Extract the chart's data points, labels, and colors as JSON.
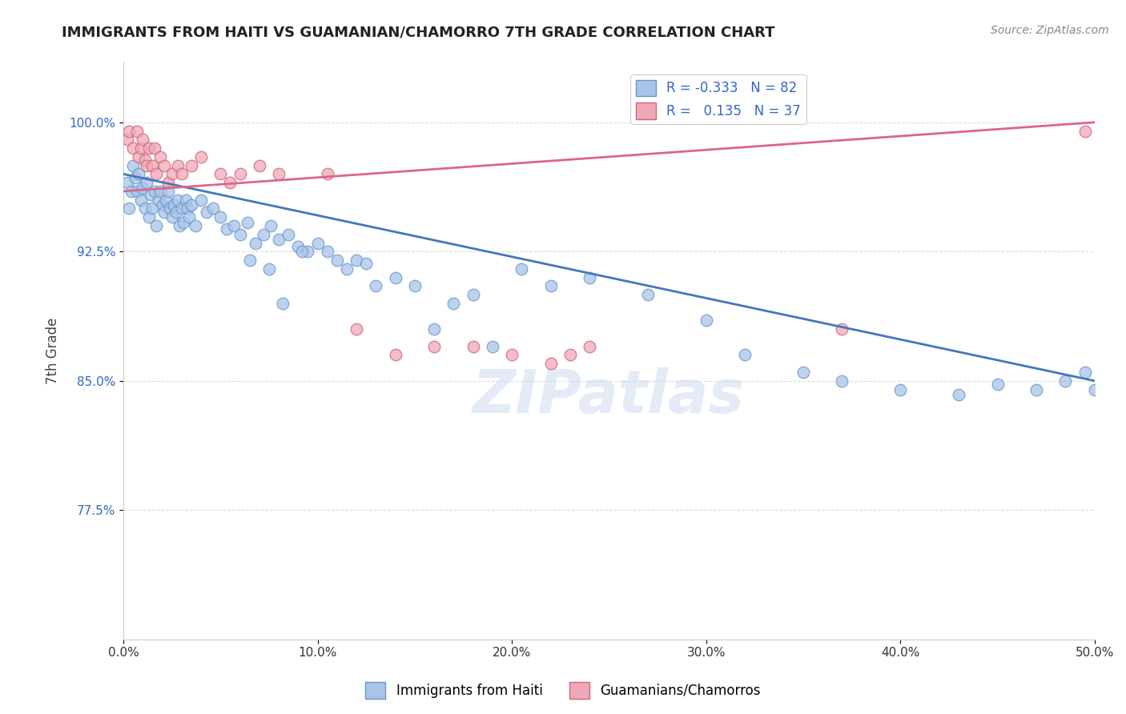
{
  "title": "IMMIGRANTS FROM HAITI VS GUAMANIAN/CHAMORRO 7TH GRADE CORRELATION CHART",
  "source": "Source: ZipAtlas.com",
  "ylabel_label": "7th Grade",
  "xlim": [
    0.0,
    50.0
  ],
  "ylim": [
    70.0,
    103.5
  ],
  "yticks": [
    77.5,
    85.0,
    92.5,
    100.0
  ],
  "xticks": [
    0.0,
    10.0,
    20.0,
    30.0,
    40.0,
    50.0
  ],
  "haiti_color": "#aac4e8",
  "chamorro_color": "#f0a8b8",
  "haiti_edge_color": "#6699cc",
  "chamorro_edge_color": "#cc6677",
  "trend_haiti_color": "#4477bb",
  "trend_chamorro_color": "#dd6688",
  "legend_R_haiti": "-0.333",
  "legend_N_haiti": "82",
  "legend_R_chamorro": "0.135",
  "legend_N_chamorro": "37",
  "watermark": "ZIPatlas",
  "haiti_x": [
    0.2,
    0.3,
    0.4,
    0.5,
    0.6,
    0.7,
    0.8,
    0.9,
    1.0,
    1.1,
    1.2,
    1.3,
    1.4,
    1.5,
    1.6,
    1.7,
    1.8,
    1.9,
    2.0,
    2.1,
    2.2,
    2.3,
    2.4,
    2.5,
    2.6,
    2.7,
    2.8,
    2.9,
    3.0,
    3.1,
    3.2,
    3.3,
    3.4,
    3.5,
    3.7,
    4.0,
    4.3,
    4.6,
    5.0,
    5.3,
    5.7,
    6.0,
    6.4,
    6.8,
    7.2,
    7.6,
    8.0,
    8.5,
    9.0,
    9.5,
    10.0,
    10.5,
    11.0,
    11.5,
    12.0,
    12.5,
    13.0,
    14.0,
    15.0,
    16.0,
    17.0,
    18.0,
    19.0,
    20.5,
    22.0,
    24.0,
    27.0,
    30.0,
    32.0,
    35.0,
    37.0,
    40.0,
    43.0,
    45.0,
    47.0,
    48.5,
    49.5,
    50.0,
    6.5,
    7.5,
    8.2,
    9.2
  ],
  "haiti_y": [
    96.5,
    95.0,
    96.0,
    97.5,
    96.8,
    96.0,
    97.0,
    95.5,
    96.2,
    95.0,
    96.5,
    94.5,
    95.8,
    95.0,
    96.0,
    94.0,
    95.5,
    96.0,
    95.2,
    94.8,
    95.5,
    96.0,
    95.0,
    94.5,
    95.2,
    94.8,
    95.5,
    94.0,
    95.0,
    94.2,
    95.5,
    95.0,
    94.5,
    95.2,
    94.0,
    95.5,
    94.8,
    95.0,
    94.5,
    93.8,
    94.0,
    93.5,
    94.2,
    93.0,
    93.5,
    94.0,
    93.2,
    93.5,
    92.8,
    92.5,
    93.0,
    92.5,
    92.0,
    91.5,
    92.0,
    91.8,
    90.5,
    91.0,
    90.5,
    88.0,
    89.5,
    90.0,
    87.0,
    91.5,
    90.5,
    91.0,
    90.0,
    88.5,
    86.5,
    85.5,
    85.0,
    84.5,
    84.2,
    84.8,
    84.5,
    85.0,
    85.5,
    84.5,
    92.0,
    91.5,
    89.5,
    92.5
  ],
  "chamorro_x": [
    0.2,
    0.3,
    0.5,
    0.7,
    0.8,
    0.9,
    1.0,
    1.1,
    1.2,
    1.3,
    1.5,
    1.6,
    1.7,
    1.9,
    2.1,
    2.3,
    2.5,
    2.8,
    3.0,
    3.5,
    4.0,
    5.0,
    5.5,
    6.0,
    7.0,
    8.0,
    10.5,
    12.0,
    14.0,
    16.0,
    18.0,
    20.0,
    22.0,
    23.0,
    24.0,
    37.0,
    49.5
  ],
  "chamorro_y": [
    99.0,
    99.5,
    98.5,
    99.5,
    98.0,
    98.5,
    99.0,
    97.8,
    97.5,
    98.5,
    97.5,
    98.5,
    97.0,
    98.0,
    97.5,
    96.5,
    97.0,
    97.5,
    97.0,
    97.5,
    98.0,
    97.0,
    96.5,
    97.0,
    97.5,
    97.0,
    97.0,
    88.0,
    86.5,
    87.0,
    87.0,
    86.5,
    86.0,
    86.5,
    87.0,
    88.0,
    99.5
  ]
}
